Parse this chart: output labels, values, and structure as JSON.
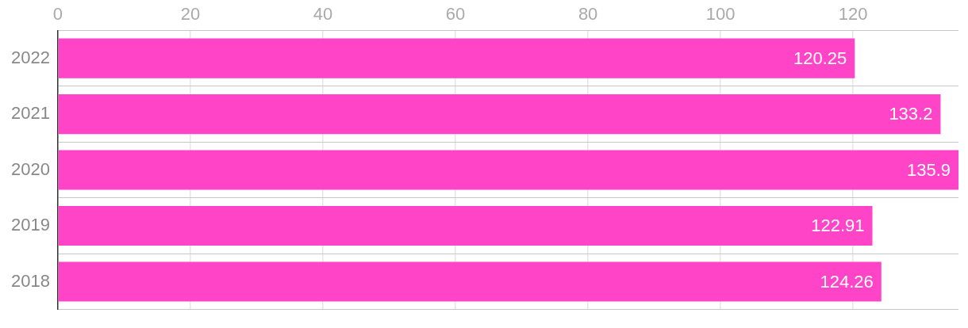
{
  "chart_data": {
    "type": "bar",
    "orientation": "horizontal",
    "categories": [
      "2022",
      "2021",
      "2020",
      "2019",
      "2018"
    ],
    "values": [
      120.25,
      133.2,
      135.9,
      122.91,
      124.26
    ],
    "color": "#ff44c8",
    "xlim": [
      0,
      135.9
    ],
    "xticks": [
      0,
      20,
      40,
      60,
      80,
      100,
      120
    ],
    "grid": true,
    "data_labels": true
  }
}
